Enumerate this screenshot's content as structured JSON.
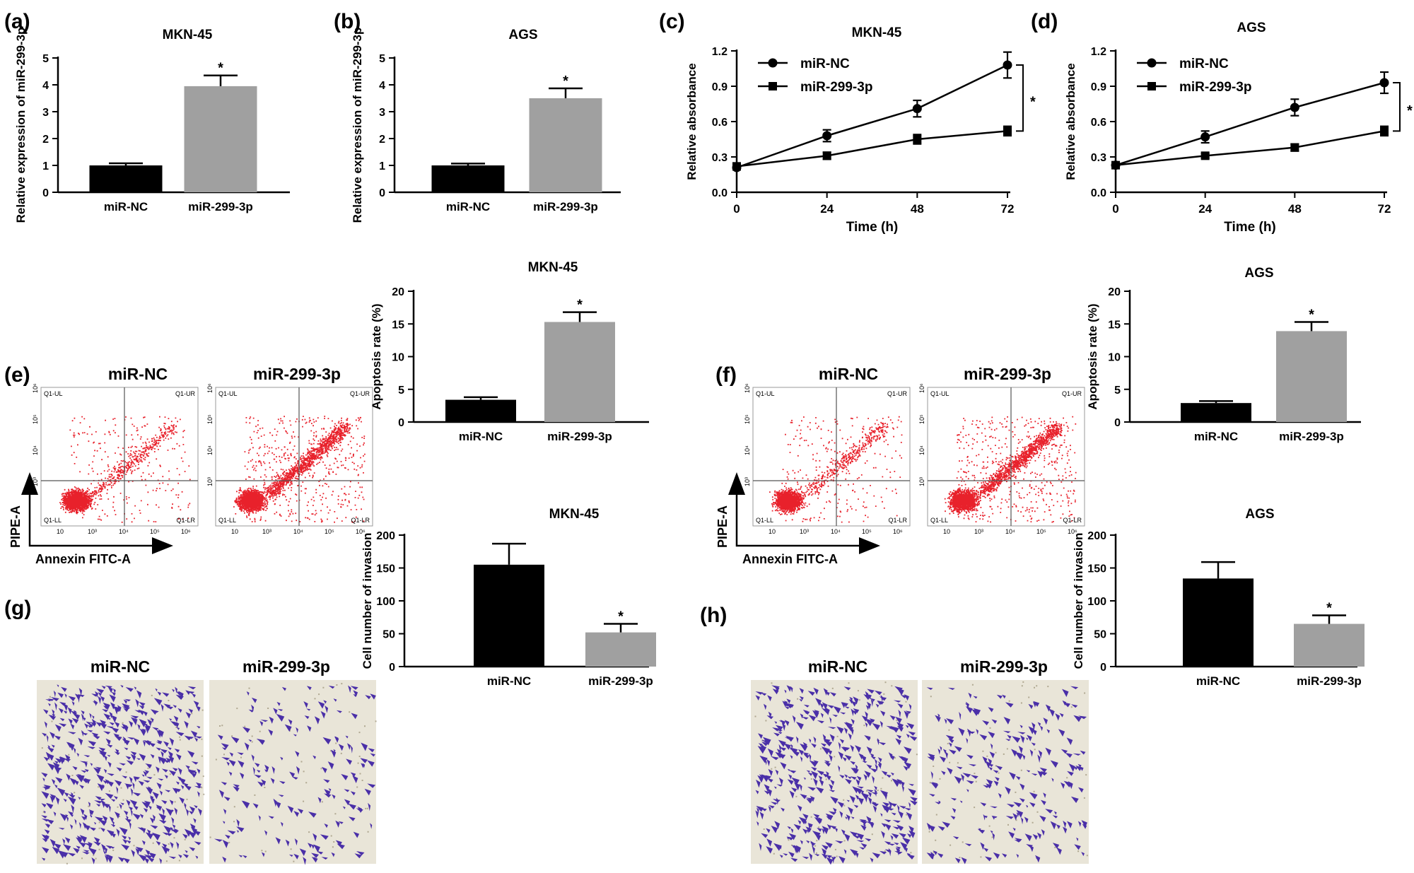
{
  "panels": {
    "a": {
      "label": "(a)",
      "title": "MKN-45",
      "ylabel": "Relative expression of miR-299-3p"
    },
    "b": {
      "label": "(b)",
      "title": "AGS",
      "ylabel": "Relative expression of miR-299-3p"
    },
    "c": {
      "label": "(c)",
      "title": "MKN-45",
      "ylabel": "Relative absorbance",
      "xlabel": "Time (h)"
    },
    "d": {
      "label": "(d)",
      "title": "AGS",
      "ylabel": "Relative absorbance",
      "xlabel": "Time (h)"
    },
    "e": {
      "label": "(e)",
      "title": "MKN-45",
      "ylabel": "Apoptosis rate (%)"
    },
    "f": {
      "label": "(f)",
      "title": "AGS",
      "ylabel": "Apoptosis rate (%)"
    },
    "g": {
      "label": "(g)",
      "title": "MKN-45",
      "ylabel": "Cell number of invasion"
    },
    "h": {
      "label": "(h)",
      "title": "AGS",
      "ylabel": "Cell number of invasion"
    }
  },
  "groups": {
    "nc": "miR-NC",
    "mir": "miR-299-3p"
  },
  "flow": {
    "x_axis": "Annexin FITC-A",
    "y_axis": "PIPE-A",
    "quadrants": [
      "Q1-UL",
      "Q1-UR",
      "Q1-LL",
      "Q1-LR"
    ],
    "x_ticks": [
      "10",
      "10³",
      "10⁴",
      "10⁵",
      "10⁶"
    ],
    "y_ticks": [
      "10³",
      "10⁴",
      "10⁵",
      "10⁶"
    ]
  },
  "significance": "*",
  "colors": {
    "nc_bar": "#000000",
    "mir_bar": "#a0a0a0",
    "dots": "#e8212b",
    "stain": "#4a2fa8",
    "well_bg": "#e9e5d8"
  },
  "chart_data": [
    {
      "id": "a",
      "type": "bar",
      "title": "MKN-45",
      "ylabel": "Relative expression of miR-299-3p",
      "categories": [
        "miR-NC",
        "miR-299-3p"
      ],
      "values": [
        1.0,
        3.95
      ],
      "errors": [
        0.08,
        0.4
      ],
      "ylim": [
        0,
        5
      ],
      "yticks": [
        0,
        1,
        2,
        3,
        4,
        5
      ],
      "significant": [
        false,
        true
      ]
    },
    {
      "id": "b",
      "type": "bar",
      "title": "AGS",
      "ylabel": "Relative expression of miR-299-3p",
      "categories": [
        "miR-NC",
        "miR-299-3p"
      ],
      "values": [
        1.0,
        3.5
      ],
      "errors": [
        0.07,
        0.37
      ],
      "ylim": [
        0,
        5
      ],
      "yticks": [
        0,
        1,
        2,
        3,
        4,
        5
      ],
      "significant": [
        false,
        true
      ]
    },
    {
      "id": "c",
      "type": "line",
      "title": "MKN-45",
      "xlabel": "Time (h)",
      "ylabel": "Relative absorbance",
      "x": [
        0,
        24,
        48,
        72
      ],
      "xlim": [
        0,
        72
      ],
      "ylim": [
        0,
        1.2
      ],
      "yticks": [
        0.0,
        0.3,
        0.6,
        0.9,
        1.2
      ],
      "yticklabels": [
        "0.0",
        "0.3",
        "0.6",
        "0.9",
        "1.2"
      ],
      "series": [
        {
          "name": "miR-NC",
          "marker": "circle",
          "values": [
            0.21,
            0.48,
            0.71,
            1.08
          ],
          "errors": [
            0.02,
            0.05,
            0.07,
            0.11
          ]
        },
        {
          "name": "miR-299-3p",
          "marker": "square",
          "values": [
            0.22,
            0.31,
            0.45,
            0.52
          ],
          "errors": [
            0.02,
            0.03,
            0.04,
            0.04
          ]
        }
      ]
    },
    {
      "id": "d",
      "type": "line",
      "title": "AGS",
      "xlabel": "Time (h)",
      "ylabel": "Relative absorbance",
      "x": [
        0,
        24,
        48,
        72
      ],
      "xlim": [
        0,
        72
      ],
      "ylim": [
        0,
        1.2
      ],
      "yticks": [
        0.0,
        0.3,
        0.6,
        0.9,
        1.2
      ],
      "yticklabels": [
        "0.0",
        "0.3",
        "0.6",
        "0.9",
        "1.2"
      ],
      "series": [
        {
          "name": "miR-NC",
          "marker": "circle",
          "values": [
            0.23,
            0.47,
            0.72,
            0.93
          ],
          "errors": [
            0.02,
            0.05,
            0.07,
            0.09
          ]
        },
        {
          "name": "miR-299-3p",
          "marker": "square",
          "values": [
            0.23,
            0.31,
            0.38,
            0.52
          ],
          "errors": [
            0.02,
            0.02,
            0.03,
            0.04
          ]
        }
      ]
    },
    {
      "id": "e",
      "type": "bar",
      "title": "MKN-45",
      "ylabel": "Apoptosis rate (%)",
      "categories": [
        "miR-NC",
        "miR-299-3p"
      ],
      "values": [
        3.4,
        15.3
      ],
      "errors": [
        0.4,
        1.5
      ],
      "ylim": [
        0,
        20
      ],
      "yticks": [
        0,
        5,
        10,
        15,
        20
      ],
      "significant": [
        false,
        true
      ]
    },
    {
      "id": "f",
      "type": "bar",
      "title": "AGS",
      "ylabel": "Apoptosis rate (%)",
      "categories": [
        "miR-NC",
        "miR-299-3p"
      ],
      "values": [
        2.9,
        13.9
      ],
      "errors": [
        0.3,
        1.4
      ],
      "ylim": [
        0,
        20
      ],
      "yticks": [
        0,
        5,
        10,
        15,
        20
      ],
      "significant": [
        false,
        true
      ]
    },
    {
      "id": "g",
      "type": "bar",
      "title": "MKN-45",
      "ylabel": "Cell number of invasion",
      "categories": [
        "miR-NC",
        "miR-299-3p"
      ],
      "values": [
        155,
        52
      ],
      "errors": [
        32,
        13
      ],
      "ylim": [
        0,
        200
      ],
      "yticks": [
        0,
        50,
        100,
        150,
        200
      ],
      "significant": [
        false,
        true
      ]
    },
    {
      "id": "h",
      "type": "bar",
      "title": "AGS",
      "ylabel": "Cell number of invasion",
      "categories": [
        "miR-NC",
        "miR-299-3p"
      ],
      "values": [
        134,
        65
      ],
      "errors": [
        25,
        13
      ],
      "ylim": [
        0,
        200
      ],
      "yticks": [
        0,
        50,
        100,
        150,
        200
      ],
      "significant": [
        false,
        true
      ]
    }
  ]
}
